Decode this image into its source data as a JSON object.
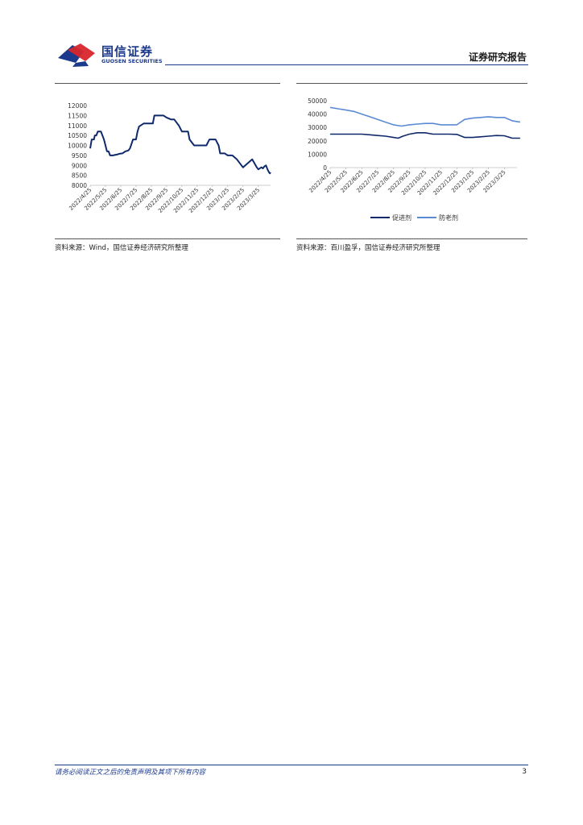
{
  "header": {
    "logo_cn": "国信证券",
    "logo_en": "GUOSEN SECURITIES",
    "report_type": "证券研究报告"
  },
  "colors": {
    "brand": "#1c3a8c",
    "brand_red": "#d7262c",
    "series_dark": "#0f2a6b",
    "series_light": "#5b8ad4"
  },
  "chart_data": [
    {
      "type": "line",
      "title": "",
      "xlabel": "",
      "ylabel": "",
      "ylim": [
        8000,
        12000
      ],
      "yticks": [
        "12000",
        "11500",
        "11000",
        "10500",
        "10000",
        "9500",
        "9000",
        "8500",
        "8000"
      ],
      "xticks": [
        "2022/4/25",
        "2022/5/25",
        "2022/6/25",
        "2022/7/25",
        "2022/8/25",
        "2022/9/25",
        "2022/10/25",
        "2022/11/25",
        "2022/12/25",
        "2023/1/25",
        "2023/2/25",
        "2023/3/25"
      ],
      "legend": [],
      "series": [
        {
          "x": [
            0,
            0.1,
            0.2,
            0.25,
            0.3,
            0.4,
            0.5,
            0.6,
            0.7,
            0.8,
            0.9,
            1.0,
            1.05,
            1.1,
            1.2,
            1.3,
            1.5,
            1.6,
            1.8,
            1.9,
            2.1,
            2.3,
            2.5,
            2.6,
            2.8,
            2.9,
            3.0,
            3.1,
            3.2,
            3.3,
            3.5,
            3.7,
            3.9,
            4.0,
            4.1,
            4.2,
            4.3,
            4.5,
            4.8,
            5.0,
            5.3,
            5.5,
            5.7,
            5.8,
            6.0,
            6.2,
            6.4,
            6.5,
            6.8,
            7.0,
            7.2,
            7.5,
            7.6,
            7.8,
            8.0,
            8.2,
            8.4,
            8.5,
            8.8,
            9.0,
            9.3,
            9.6,
            9.9,
            10.0,
            10.3,
            10.6,
            10.9,
            11.0,
            11.2,
            11.3,
            11.4,
            11.5,
            11.6,
            11.7,
            11.75,
            11.8
          ],
          "y": [
            9850,
            10300,
            10300,
            10300,
            10500,
            10500,
            10700,
            10700,
            10700,
            10500,
            10300,
            10000,
            9850,
            9700,
            9700,
            9500,
            9500,
            9520,
            9550,
            9580,
            9600,
            9700,
            9750,
            9850,
            10300,
            10300,
            10300,
            10700,
            10950,
            11000,
            11100,
            11100,
            11100,
            11100,
            11100,
            11500,
            11500,
            11500,
            11500,
            11400,
            11300,
            11300,
            11100,
            11000,
            10700,
            10700,
            10700,
            10300,
            10000,
            10000,
            10000,
            10000,
            10000,
            10300,
            10300,
            10300,
            10000,
            9600,
            9600,
            9500,
            9500,
            9300,
            9000,
            8900,
            9100,
            9300,
            8900,
            8800,
            8900,
            8850,
            8950,
            9000,
            8800,
            8650,
            8600,
            8650
          ]
        }
      ]
    },
    {
      "type": "line",
      "title": "",
      "xlabel": "",
      "ylabel": "",
      "ylim": [
        0,
        50000
      ],
      "yticks": [
        "50000",
        "40000",
        "30000",
        "20000",
        "10000",
        "0"
      ],
      "xticks": [
        "2022/4/25",
        "2022/5/25",
        "2022/6/25",
        "2022/7/25",
        "2022/8/25",
        "2022/9/25",
        "2022/10/25",
        "2022/11/25",
        "2022/12/25",
        "2023/1/25",
        "2023/2/25",
        "2023/3/25"
      ],
      "legend_position": "bottom",
      "series": [
        {
          "name": "促进剂",
          "x": [
            0,
            0.5,
            1,
            1.5,
            2,
            2.5,
            3,
            3.5,
            4,
            4.3,
            4.6,
            5,
            5.5,
            6,
            6.5,
            7,
            7.5,
            8,
            8.5,
            9,
            9.5,
            10,
            10.5,
            11,
            11.5,
            12
          ],
          "y": [
            25000,
            25000,
            25000,
            25000,
            25000,
            24500,
            24000,
            23500,
            22500,
            22000,
            23500,
            25000,
            26000,
            26000,
            25000,
            25000,
            25000,
            24800,
            22500,
            22500,
            23000,
            23500,
            24000,
            23800,
            22000,
            22000
          ]
        },
        {
          "name": "防老剂",
          "x": [
            0,
            0.5,
            1,
            1.5,
            2,
            2.5,
            3,
            3.5,
            4,
            4.5,
            5,
            5.5,
            6,
            6.5,
            7,
            7.5,
            8,
            8.5,
            9,
            9.5,
            10,
            10.5,
            11,
            11.5,
            12
          ],
          "y": [
            45000,
            44000,
            43000,
            42000,
            40000,
            38000,
            36000,
            34000,
            32000,
            31000,
            32000,
            32500,
            33000,
            33000,
            32000,
            32000,
            32000,
            36000,
            37000,
            37500,
            38000,
            37500,
            37500,
            35000,
            34000
          ]
        }
      ]
    }
  ],
  "sources": {
    "left": "资料来源：Wind，国信证券经济研究所整理",
    "right": "资料来源：百川盈孚，国信证券经济研究所整理"
  },
  "footer": {
    "disclaimer": "请务必阅读正文之后的免责声明及其项下所有内容",
    "page": "3"
  }
}
